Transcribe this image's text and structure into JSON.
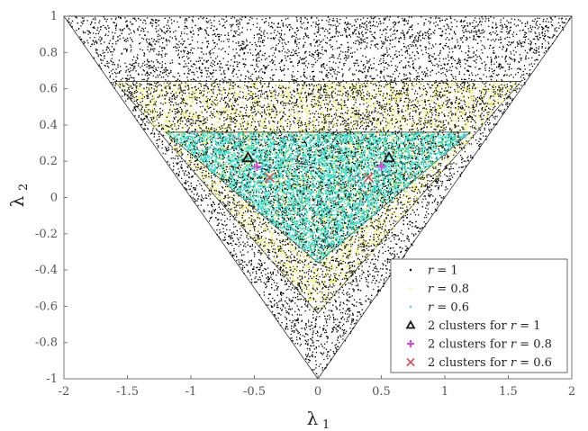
{
  "chart_data": {
    "type": "scatter",
    "xlim": [
      -2,
      2
    ],
    "ylim": [
      -1,
      1
    ],
    "xticks": [
      "-2",
      "-1.5",
      "-1",
      "-0.5",
      "0",
      "0.5",
      "1",
      "1.5",
      "2"
    ],
    "yticks": [
      "-1",
      "-0.8",
      "-0.6",
      "-0.4",
      "-0.2",
      "0",
      "0.2",
      "0.4",
      "0.6",
      "0.8",
      "1"
    ],
    "xlabel": "λ",
    "xlabel_sub": "1",
    "ylabel": "λ",
    "ylabel_sub": "2",
    "grid": false,
    "legend_position": "bottom-right",
    "series": [
      {
        "name": "r = 1",
        "name_var": "r",
        "name_rest": " = 1",
        "marker": "dot",
        "color": "#000000",
        "region": {
          "shape": "triangle",
          "vertices": [
            [
              -2,
              1
            ],
            [
              2,
              1
            ],
            [
              0,
              -1
            ]
          ]
        }
      },
      {
        "name": "r = 0.8",
        "name_var": "r",
        "name_rest": " = 0.8",
        "marker": "dot",
        "color": "#f2f26a",
        "region": {
          "shape": "triangle",
          "vertices": [
            [
              -1.6,
              0.64
            ],
            [
              1.6,
              0.64
            ],
            [
              0,
              -0.64
            ]
          ]
        }
      },
      {
        "name": "r = 0.6",
        "name_var": "r",
        "name_rest": " = 0.6",
        "marker": "dot",
        "color": "#2ee0d0",
        "region": {
          "shape": "triangle",
          "vertices": [
            [
              -1.2,
              0.36
            ],
            [
              1.2,
              0.36
            ],
            [
              0,
              -0.36
            ]
          ]
        }
      },
      {
        "name": "2 clusters for r = 1",
        "name_pre": "2 clusters for ",
        "name_var": "r",
        "name_rest": " = 1",
        "marker": "triangle",
        "color": "#1a1a1a",
        "points": [
          [
            -0.55,
            0.22
          ],
          [
            0.56,
            0.22
          ]
        ]
      },
      {
        "name": "2 clusters for r = 0.8",
        "name_pre": "2 clusters for ",
        "name_var": "r",
        "name_rest": " = 0.8",
        "marker": "plus",
        "color": "#e040e8",
        "points": [
          [
            -0.48,
            0.17
          ],
          [
            0.5,
            0.17
          ]
        ]
      },
      {
        "name": "2 clusters for r = 0.6",
        "name_pre": "2 clusters for ",
        "name_var": "r",
        "name_rest": " = 0.6",
        "marker": "x",
        "color": "#e04a5a",
        "points": [
          [
            -0.38,
            0.11
          ],
          [
            0.4,
            0.11
          ]
        ]
      }
    ]
  }
}
